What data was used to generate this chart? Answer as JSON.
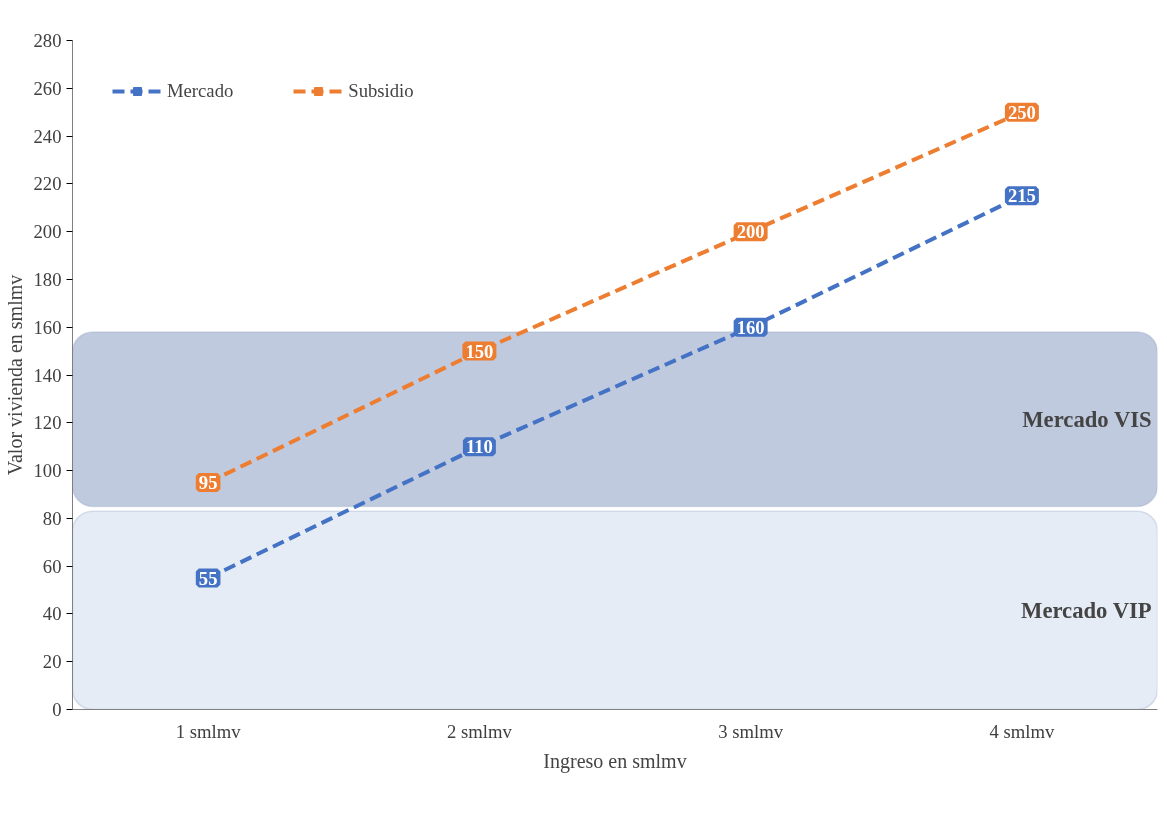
{
  "chart_data": {
    "type": "line",
    "xlabel": "Ingreso en smlmv",
    "ylabel": "Valor vivienda en smlmv",
    "categories": [
      "1 smlmv",
      "2 smlmv",
      "3 smlmv",
      "4 smlmv"
    ],
    "series": [
      {
        "name": "Mercado",
        "color": "#4472c4",
        "values": [
          55,
          110,
          160,
          215
        ]
      },
      {
        "name": "Subsidio",
        "color": "#ed7d31",
        "values": [
          95,
          150,
          200,
          250
        ]
      }
    ],
    "ylim": [
      0,
      280
    ],
    "yticks": [
      0,
      20,
      40,
      60,
      80,
      100,
      120,
      140,
      160,
      180,
      200,
      220,
      240,
      260,
      280
    ],
    "bands": [
      {
        "axis": "y",
        "from": 85,
        "to": 158,
        "label": "Mercado VIS",
        "color": "#c0cadf"
      },
      {
        "axis": "y",
        "from": 0,
        "to": 83,
        "label": "Mercado VIP",
        "color": "#e6ecf6"
      }
    ],
    "line_style": "dashed",
    "marker": "square",
    "data_labels": true,
    "legend": "top left",
    "grid": false
  }
}
